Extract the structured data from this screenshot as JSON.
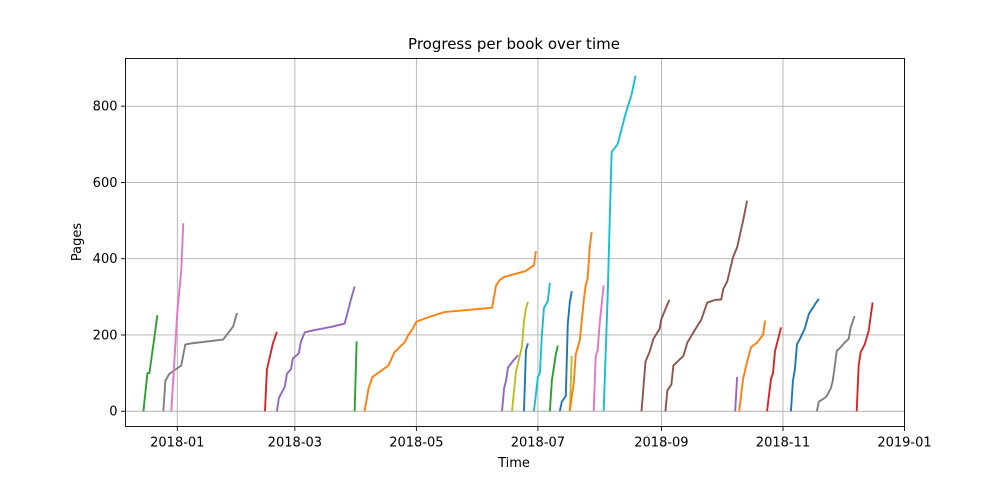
{
  "chart_data": {
    "type": "line",
    "title": "Progress per book over time",
    "xlabel": "Time",
    "ylabel": "Pages",
    "x_type": "date",
    "xlim": [
      "2017-12-06",
      "2019-01-01"
    ],
    "ylim": [
      -40,
      925
    ],
    "grid": true,
    "x_ticks": [
      {
        "date": "2018-01-01",
        "label": "2018-01"
      },
      {
        "date": "2018-03-01",
        "label": "2018-03"
      },
      {
        "date": "2018-05-01",
        "label": "2018-05"
      },
      {
        "date": "2018-07-01",
        "label": "2018-07"
      },
      {
        "date": "2018-09-01",
        "label": "2018-09"
      },
      {
        "date": "2018-11-01",
        "label": "2018-11"
      },
      {
        "date": "2019-01-01",
        "label": "2019-01"
      }
    ],
    "y_ticks": [
      0,
      200,
      400,
      600,
      800
    ],
    "series": [
      {
        "color": "#2ca02c",
        "points": [
          [
            "2017-12-15",
            0
          ],
          [
            "2017-12-16",
            50
          ],
          [
            "2017-12-17",
            100
          ],
          [
            "2017-12-18",
            100
          ],
          [
            "2017-12-20",
            175
          ],
          [
            "2017-12-22",
            252
          ]
        ]
      },
      {
        "color": "#7f7f7f",
        "points": [
          [
            "2017-12-25",
            0
          ],
          [
            "2017-12-26",
            80
          ],
          [
            "2017-12-28",
            98
          ],
          [
            "2018-01-03",
            120
          ],
          [
            "2018-01-05",
            175
          ],
          [
            "2018-01-08",
            178
          ],
          [
            "2018-01-24",
            188
          ],
          [
            "2018-01-29",
            222
          ],
          [
            "2018-01-31",
            258
          ]
        ]
      },
      {
        "color": "#e377c2",
        "points": [
          [
            "2017-12-29",
            0
          ],
          [
            "2018-01-01",
            260
          ],
          [
            "2018-01-03",
            370
          ],
          [
            "2018-01-04",
            493
          ]
        ]
      },
      {
        "color": "#d62728",
        "points": [
          [
            "2018-02-14",
            0
          ],
          [
            "2018-02-15",
            110
          ],
          [
            "2018-02-18",
            178
          ],
          [
            "2018-02-20",
            208
          ]
        ]
      },
      {
        "color": "#9467bd",
        "points": [
          [
            "2018-02-20",
            0
          ],
          [
            "2018-02-21",
            35
          ],
          [
            "2018-02-24",
            65
          ],
          [
            "2018-02-25",
            98
          ],
          [
            "2018-02-27",
            110
          ],
          [
            "2018-02-28",
            138
          ],
          [
            "2018-03-03",
            152
          ],
          [
            "2018-03-04",
            182
          ],
          [
            "2018-03-06",
            207
          ],
          [
            "2018-03-10",
            212
          ],
          [
            "2018-03-20",
            222
          ],
          [
            "2018-03-26",
            230
          ],
          [
            "2018-03-28",
            270
          ],
          [
            "2018-03-29",
            290
          ],
          [
            "2018-03-31",
            327
          ]
        ]
      },
      {
        "color": "#2ca02c",
        "points": [
          [
            "2018-03-31",
            0
          ],
          [
            "2018-04-01",
            183
          ]
        ]
      },
      {
        "color": "#ff7f0e",
        "points": [
          [
            "2018-04-05",
            0
          ],
          [
            "2018-04-07",
            60
          ],
          [
            "2018-04-09",
            90
          ],
          [
            "2018-04-17",
            120
          ],
          [
            "2018-04-20",
            155
          ],
          [
            "2018-04-25",
            180
          ],
          [
            "2018-04-27",
            200
          ],
          [
            "2018-04-29",
            215
          ],
          [
            "2018-05-01",
            235
          ],
          [
            "2018-05-09",
            250
          ],
          [
            "2018-05-15",
            260
          ],
          [
            "2018-06-05",
            270
          ],
          [
            "2018-06-08",
            272
          ],
          [
            "2018-06-10",
            330
          ],
          [
            "2018-06-12",
            345
          ],
          [
            "2018-06-14",
            352
          ],
          [
            "2018-06-25",
            368
          ],
          [
            "2018-06-29",
            383
          ],
          [
            "2018-06-30",
            420
          ]
        ]
      },
      {
        "color": "#9467bd",
        "points": [
          [
            "2018-06-13",
            0
          ],
          [
            "2018-06-14",
            60
          ],
          [
            "2018-06-15",
            80
          ],
          [
            "2018-06-16",
            115
          ],
          [
            "2018-06-19",
            135
          ],
          [
            "2018-06-21",
            147
          ]
        ]
      },
      {
        "color": "#bcbd22",
        "points": [
          [
            "2018-06-18",
            0
          ],
          [
            "2018-06-20",
            105
          ],
          [
            "2018-06-21",
            125
          ],
          [
            "2018-06-23",
            170
          ],
          [
            "2018-06-24",
            235
          ],
          [
            "2018-06-25",
            270
          ],
          [
            "2018-06-26",
            287
          ]
        ]
      },
      {
        "color": "#1f77b4",
        "points": [
          [
            "2018-06-24",
            0
          ],
          [
            "2018-06-25",
            160
          ],
          [
            "2018-06-26",
            178
          ]
        ]
      },
      {
        "color": "#17becf",
        "points": [
          [
            "2018-06-29",
            0
          ],
          [
            "2018-07-01",
            90
          ],
          [
            "2018-07-02",
            100
          ],
          [
            "2018-07-03",
            200
          ],
          [
            "2018-07-04",
            270
          ],
          [
            "2018-07-06",
            290
          ],
          [
            "2018-07-07",
            337
          ]
        ]
      },
      {
        "color": "#2ca02c",
        "points": [
          [
            "2018-07-07",
            0
          ],
          [
            "2018-07-08",
            80
          ],
          [
            "2018-07-10",
            150
          ],
          [
            "2018-07-11",
            172
          ]
        ]
      },
      {
        "color": "#1f77b4",
        "points": [
          [
            "2018-07-12",
            0
          ],
          [
            "2018-07-13",
            25
          ],
          [
            "2018-07-15",
            40
          ],
          [
            "2018-07-16",
            230
          ],
          [
            "2018-07-17",
            285
          ],
          [
            "2018-07-18",
            315
          ]
        ]
      },
      {
        "color": "#bcbd22",
        "points": [
          [
            "2018-07-17",
            0
          ],
          [
            "2018-07-18",
            145
          ]
        ]
      },
      {
        "color": "#ff7f0e",
        "points": [
          [
            "2018-07-17",
            0
          ],
          [
            "2018-07-19",
            75
          ],
          [
            "2018-07-20",
            150
          ],
          [
            "2018-07-22",
            185
          ],
          [
            "2018-07-24",
            290
          ],
          [
            "2018-07-25",
            330
          ],
          [
            "2018-07-26",
            350
          ],
          [
            "2018-07-27",
            430
          ],
          [
            "2018-07-28",
            470
          ]
        ]
      },
      {
        "color": "#e377c2",
        "points": [
          [
            "2018-07-29",
            0
          ],
          [
            "2018-07-30",
            145
          ],
          [
            "2018-07-31",
            160
          ],
          [
            "2018-08-01",
            230
          ],
          [
            "2018-08-03",
            330
          ]
        ]
      },
      {
        "color": "#17becf",
        "points": [
          [
            "2018-08-03",
            0
          ],
          [
            "2018-08-05",
            300
          ],
          [
            "2018-08-07",
            680
          ],
          [
            "2018-08-10",
            700
          ],
          [
            "2018-08-14",
            780
          ],
          [
            "2018-08-17",
            830
          ],
          [
            "2018-08-19",
            880
          ]
        ]
      },
      {
        "color": "#8c564b",
        "points": [
          [
            "2018-08-22",
            0
          ],
          [
            "2018-08-24",
            130
          ],
          [
            "2018-08-26",
            155
          ],
          [
            "2018-08-28",
            190
          ],
          [
            "2018-08-31",
            215
          ],
          [
            "2018-09-01",
            242
          ],
          [
            "2018-09-03",
            268
          ],
          [
            "2018-09-05",
            292
          ]
        ]
      },
      {
        "color": "#8c564b",
        "points": [
          [
            "2018-09-03",
            0
          ],
          [
            "2018-09-04",
            55
          ],
          [
            "2018-09-06",
            70
          ],
          [
            "2018-09-07",
            120
          ],
          [
            "2018-09-09",
            130
          ],
          [
            "2018-09-12",
            145
          ],
          [
            "2018-09-14",
            180
          ],
          [
            "2018-09-18",
            215
          ],
          [
            "2018-09-21",
            240
          ],
          [
            "2018-09-24",
            285
          ],
          [
            "2018-09-28",
            292
          ],
          [
            "2018-10-01",
            293
          ],
          [
            "2018-10-02",
            320
          ],
          [
            "2018-10-04",
            340
          ],
          [
            "2018-10-07",
            405
          ],
          [
            "2018-10-09",
            430
          ],
          [
            "2018-10-12",
            500
          ],
          [
            "2018-10-14",
            552
          ]
        ]
      },
      {
        "color": "#9467bd",
        "points": [
          [
            "2018-10-08",
            0
          ],
          [
            "2018-10-09",
            90
          ]
        ]
      },
      {
        "color": "#ff7f0e",
        "points": [
          [
            "2018-10-10",
            0
          ],
          [
            "2018-10-12",
            85
          ],
          [
            "2018-10-14",
            130
          ],
          [
            "2018-10-16",
            168
          ],
          [
            "2018-10-19",
            180
          ],
          [
            "2018-10-22",
            200
          ],
          [
            "2018-10-23",
            238
          ]
        ]
      },
      {
        "color": "#d62728",
        "points": [
          [
            "2018-10-24",
            0
          ],
          [
            "2018-10-26",
            85
          ],
          [
            "2018-10-27",
            100
          ],
          [
            "2018-10-28",
            158
          ],
          [
            "2018-10-30",
            198
          ],
          [
            "2018-10-31",
            220
          ]
        ]
      },
      {
        "color": "#1f77b4",
        "points": [
          [
            "2018-11-05",
            0
          ],
          [
            "2018-11-06",
            80
          ],
          [
            "2018-11-07",
            110
          ],
          [
            "2018-11-08",
            175
          ],
          [
            "2018-11-10",
            195
          ],
          [
            "2018-11-12",
            218
          ],
          [
            "2018-11-14",
            255
          ],
          [
            "2018-11-17",
            280
          ],
          [
            "2018-11-19",
            295
          ]
        ]
      },
      {
        "color": "#7f7f7f",
        "points": [
          [
            "2018-11-18",
            0
          ],
          [
            "2018-11-19",
            25
          ],
          [
            "2018-11-22",
            35
          ],
          [
            "2018-11-23",
            40
          ],
          [
            "2018-11-25",
            60
          ],
          [
            "2018-11-26",
            80
          ],
          [
            "2018-11-28",
            158
          ],
          [
            "2018-11-30",
            168
          ],
          [
            "2018-12-02",
            180
          ],
          [
            "2018-12-04",
            190
          ],
          [
            "2018-12-05",
            220
          ],
          [
            "2018-12-07",
            250
          ]
        ]
      },
      {
        "color": "#d62728",
        "points": [
          [
            "2018-12-08",
            0
          ],
          [
            "2018-12-09",
            120
          ],
          [
            "2018-12-10",
            155
          ],
          [
            "2018-12-12",
            175
          ],
          [
            "2018-12-14",
            210
          ],
          [
            "2018-12-15",
            248
          ],
          [
            "2018-12-16",
            285
          ]
        ]
      }
    ]
  }
}
